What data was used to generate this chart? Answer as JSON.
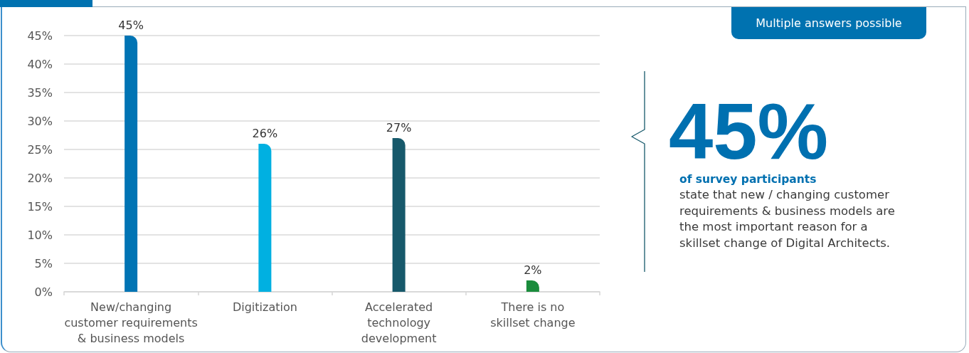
{
  "chart_data": {
    "type": "bar",
    "categories": [
      "New/changing\ncustomer requirements\n& business models",
      "Digitization",
      "Accelerated\ntechnology\ndevelopment",
      "There is no\nskillset change"
    ],
    "values": [
      45,
      26,
      27,
      2
    ],
    "colors": [
      "#0074b4",
      "#00b0e1",
      "#17596b",
      "#1a8c3c"
    ],
    "value_labels": [
      "45%",
      "26%",
      "27%",
      "2%"
    ],
    "ylim": [
      0,
      45
    ],
    "yticks": [
      {
        "value": 0,
        "label": "0%"
      },
      {
        "value": 5,
        "label": "5%"
      },
      {
        "value": 10,
        "label": "10%"
      },
      {
        "value": 15,
        "label": "15%"
      },
      {
        "value": 20,
        "label": "20%"
      },
      {
        "value": 25,
        "label": "25%"
      },
      {
        "value": 30,
        "label": "30%"
      },
      {
        "value": 35,
        "label": "35%"
      },
      {
        "value": 40,
        "label": "40%"
      },
      {
        "value": 45,
        "label": "45%"
      }
    ],
    "grid": "y",
    "annotations": [
      "Multiple answers possible",
      "45%",
      "of survey participants",
      "state that new / changing customer requirements & business models are the most important reason for a skillset change of Digital Architects."
    ]
  }
}
